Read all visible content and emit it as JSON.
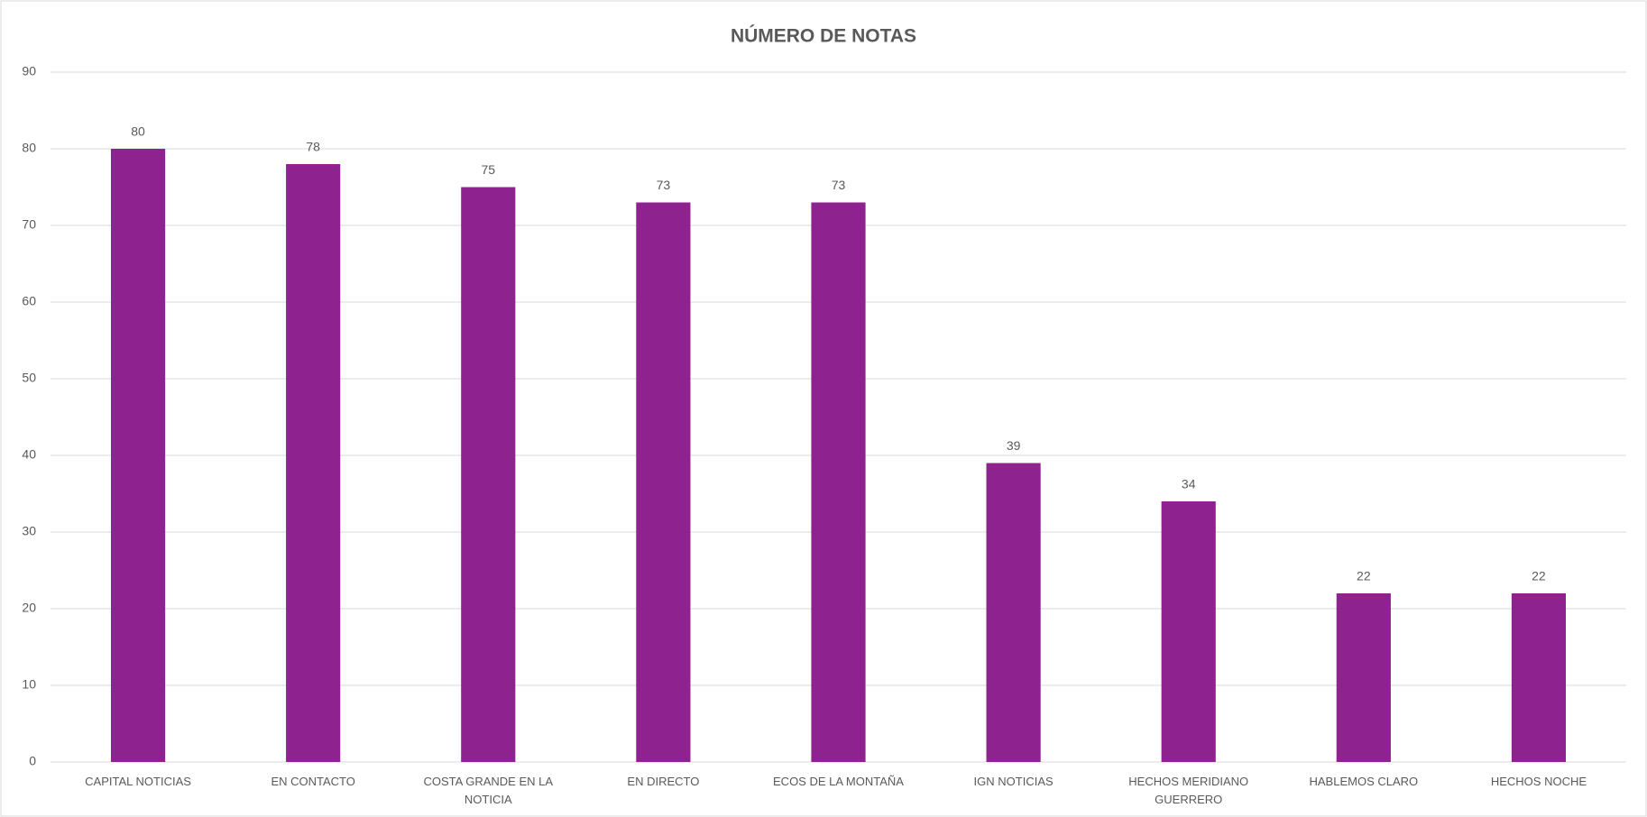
{
  "chart_data": {
    "type": "bar",
    "title": "NÚMERO DE NOTAS",
    "categories": [
      "CAPITAL NOTICIAS",
      "EN CONTACTO",
      "COSTA GRANDE EN LA NOTICIA",
      "EN DIRECTO",
      "ECOS DE LA MONTAÑA",
      "IGN NOTICIAS",
      "HECHOS MERIDIANO GUERRERO",
      "HABLEMOS CLARO",
      "HECHOS NOCHE"
    ],
    "values": [
      80,
      78,
      75,
      73,
      73,
      39,
      34,
      22,
      22
    ],
    "color": "#8e228e",
    "ylim": [
      0,
      90
    ],
    "yticks": [
      0,
      10,
      20,
      30,
      40,
      50,
      60,
      70,
      80,
      90
    ],
    "grid": true
  }
}
